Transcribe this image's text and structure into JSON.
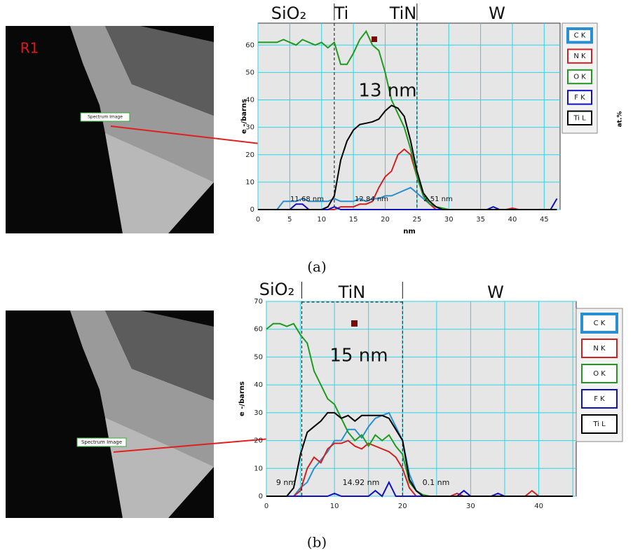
{
  "chart_data": [
    {
      "type": "line",
      "caption": "(a)",
      "image_labels": [
        "R1",
        "Spectrum Image"
      ],
      "regions": [
        "SiO₂",
        "Ti",
        "TiN",
        "W"
      ],
      "annotations": [
        "13 nm",
        "11.68 nm",
        "12.84 nm",
        "2.51 nm"
      ],
      "x_label": "nm",
      "y_label": "e -/barns",
      "y2_label": "at.%",
      "dividers": [
        12,
        25
      ],
      "x": [
        0,
        1,
        2,
        3,
        4,
        5,
        6,
        7,
        8,
        9,
        10,
        11,
        12,
        13,
        14,
        15,
        16,
        17,
        18,
        19,
        20,
        21,
        22,
        23,
        24,
        25,
        26,
        27,
        28,
        29,
        30,
        31,
        32,
        33,
        34,
        35,
        36,
        37,
        38,
        39,
        40,
        41,
        42,
        43,
        44,
        45,
        46,
        47
      ],
      "series": [
        {
          "name": "C K",
          "color": "#2a8fd0",
          "values": [
            0,
            0,
            0,
            0,
            3,
            3,
            3,
            4,
            3,
            3,
            3,
            3,
            4,
            3,
            3,
            3,
            4,
            3,
            4,
            4,
            5,
            5,
            6,
            7,
            8,
            6,
            4,
            2,
            1,
            0,
            0,
            0,
            0,
            0,
            0,
            0,
            0,
            0,
            0,
            0,
            0,
            0,
            0,
            0,
            0,
            0,
            0,
            0
          ]
        },
        {
          "name": "N K",
          "color": "#d02020",
          "values": [
            0,
            0,
            0,
            0,
            0,
            0,
            0,
            0,
            0,
            0,
            0,
            0,
            0,
            1,
            1,
            1,
            2,
            2,
            3,
            8,
            12,
            14,
            20,
            22,
            20,
            12,
            5,
            2,
            0,
            0,
            0,
            0,
            0,
            0,
            0,
            0,
            0,
            0,
            0,
            0,
            0.5,
            0,
            0,
            0,
            0,
            0,
            0,
            0
          ]
        },
        {
          "name": "O K",
          "color": "#1f9a1f",
          "values": [
            61,
            61,
            61,
            61,
            62,
            61,
            60,
            62,
            61,
            60,
            61,
            59,
            61,
            53,
            53,
            57,
            62,
            65,
            60,
            58,
            50,
            40,
            35,
            30,
            22,
            12,
            5,
            2,
            1,
            0.5,
            0,
            0,
            0,
            0,
            0,
            0,
            0,
            0,
            0,
            0,
            0,
            0,
            0,
            0,
            0,
            0,
            0,
            0
          ]
        },
        {
          "name": "F K",
          "color": "#1010c0",
          "values": [
            0,
            0,
            0,
            0,
            0,
            0,
            2,
            2,
            0,
            0,
            0,
            0,
            1,
            0,
            0,
            0,
            0,
            0,
            0,
            0,
            0,
            0,
            0,
            0,
            0,
            0,
            0,
            0,
            0,
            0,
            0,
            0,
            0,
            0,
            0,
            0,
            0,
            1,
            0,
            0,
            0,
            0,
            0,
            0,
            0,
            0,
            0,
            4
          ]
        },
        {
          "name": "Ti L",
          "color": "#000000",
          "values": [
            0,
            0,
            0,
            0,
            0,
            0,
            0,
            0,
            0,
            0,
            0,
            1,
            5,
            18,
            25,
            29,
            31,
            31.5,
            32,
            33,
            36,
            38,
            37,
            34,
            25,
            14,
            6,
            3,
            1,
            0,
            0,
            0,
            0,
            0,
            0,
            0,
            0,
            0,
            0,
            0,
            0,
            0,
            0,
            0,
            0,
            0,
            0,
            0
          ]
        }
      ],
      "xlim": [
        0,
        47.5
      ],
      "ylim": [
        0,
        68
      ],
      "xticks": [
        0,
        5,
        10,
        15,
        20,
        25,
        30,
        35,
        40,
        45
      ],
      "x_grid": [
        0,
        5,
        10,
        15,
        20,
        25,
        30,
        35,
        40,
        45
      ],
      "yticks": [
        0,
        10,
        20,
        30,
        40,
        50,
        60
      ],
      "grid": true
    },
    {
      "type": "line",
      "caption": "(b)",
      "image_labels": [
        "Spectrum Image"
      ],
      "regions": [
        "SiO₂",
        "TiN",
        "W"
      ],
      "annotations": [
        "15 nm",
        "9 nm",
        "14.92 nm",
        "0.1 nm"
      ],
      "x_label": "",
      "y_label": "e -/barns",
      "dividers": [
        5.2,
        20
      ],
      "x": [
        0,
        1,
        2,
        3,
        4,
        5,
        6,
        7,
        8,
        9,
        10,
        11,
        12,
        13,
        14,
        15,
        16,
        17,
        18,
        19,
        20,
        21,
        22,
        23,
        24,
        25,
        26,
        27,
        28,
        29,
        30,
        31,
        32,
        33,
        34,
        35,
        36,
        37,
        38,
        39,
        40,
        41,
        42,
        43,
        44,
        45
      ],
      "series": [
        {
          "name": "C K",
          "color": "#2a8fd0",
          "values": [
            0,
            0,
            0,
            0,
            0,
            3,
            5,
            10,
            13,
            16,
            20,
            20,
            24,
            24,
            21,
            25,
            28,
            29,
            30,
            25,
            20,
            8,
            2,
            0,
            0,
            0,
            0,
            0,
            0,
            0,
            0,
            0,
            0,
            0,
            0,
            0,
            0,
            0,
            0,
            0,
            0,
            0,
            0,
            0,
            0,
            0
          ]
        },
        {
          "name": "N K",
          "color": "#d02020",
          "values": [
            0,
            0,
            0,
            0,
            0,
            2,
            10,
            14,
            12,
            17,
            19,
            19,
            20,
            18,
            17,
            19,
            18,
            17,
            16,
            14,
            10,
            3,
            0,
            0,
            0,
            0,
            0,
            0,
            1,
            0,
            0,
            0,
            0,
            0,
            0,
            0,
            0,
            0,
            0,
            2,
            0,
            0,
            0,
            0,
            0,
            0
          ]
        },
        {
          "name": "O K",
          "color": "#1f9a1f",
          "values": [
            60,
            62,
            62,
            61,
            62,
            58,
            55,
            45,
            40,
            35,
            33,
            28,
            23,
            20,
            22,
            18,
            22,
            20,
            22,
            18,
            15,
            5,
            2,
            0.5,
            0,
            0,
            0,
            0,
            0,
            0,
            0,
            0,
            0,
            0,
            0,
            0,
            0,
            0,
            0,
            0,
            0,
            0,
            0,
            0,
            0,
            0
          ]
        },
        {
          "name": "F K",
          "color": "#1010c0",
          "values": [
            0,
            0,
            0,
            0,
            0,
            0,
            0,
            0,
            0,
            0,
            1,
            0,
            0,
            0,
            0,
            0,
            2,
            0,
            5,
            0,
            0,
            0,
            0,
            0,
            0,
            0,
            0,
            0,
            0,
            2,
            0,
            0,
            0,
            0,
            1,
            0,
            0,
            0,
            0,
            0,
            0,
            0,
            0,
            0,
            0,
            0
          ]
        },
        {
          "name": "Ti L",
          "color": "#000000",
          "values": [
            0,
            0,
            0,
            0,
            3,
            15,
            23,
            25,
            27,
            30,
            30,
            28,
            29,
            27,
            29,
            29,
            29,
            29,
            28,
            24,
            20,
            6,
            2,
            0,
            0,
            0,
            0,
            0,
            0,
            0,
            0,
            0,
            0,
            0,
            0,
            0,
            0,
            0,
            0,
            0,
            0,
            0,
            0,
            0,
            0,
            0
          ]
        }
      ],
      "xlim": [
        0,
        45.5
      ],
      "ylim": [
        0,
        70
      ],
      "xticks": [
        0,
        10,
        20,
        30,
        40
      ],
      "x_grid": [
        0,
        5,
        10,
        15,
        20,
        25,
        30,
        35,
        40,
        45
      ],
      "yticks": [
        0,
        10,
        20,
        30,
        40,
        50,
        60,
        70
      ],
      "grid": true
    }
  ]
}
